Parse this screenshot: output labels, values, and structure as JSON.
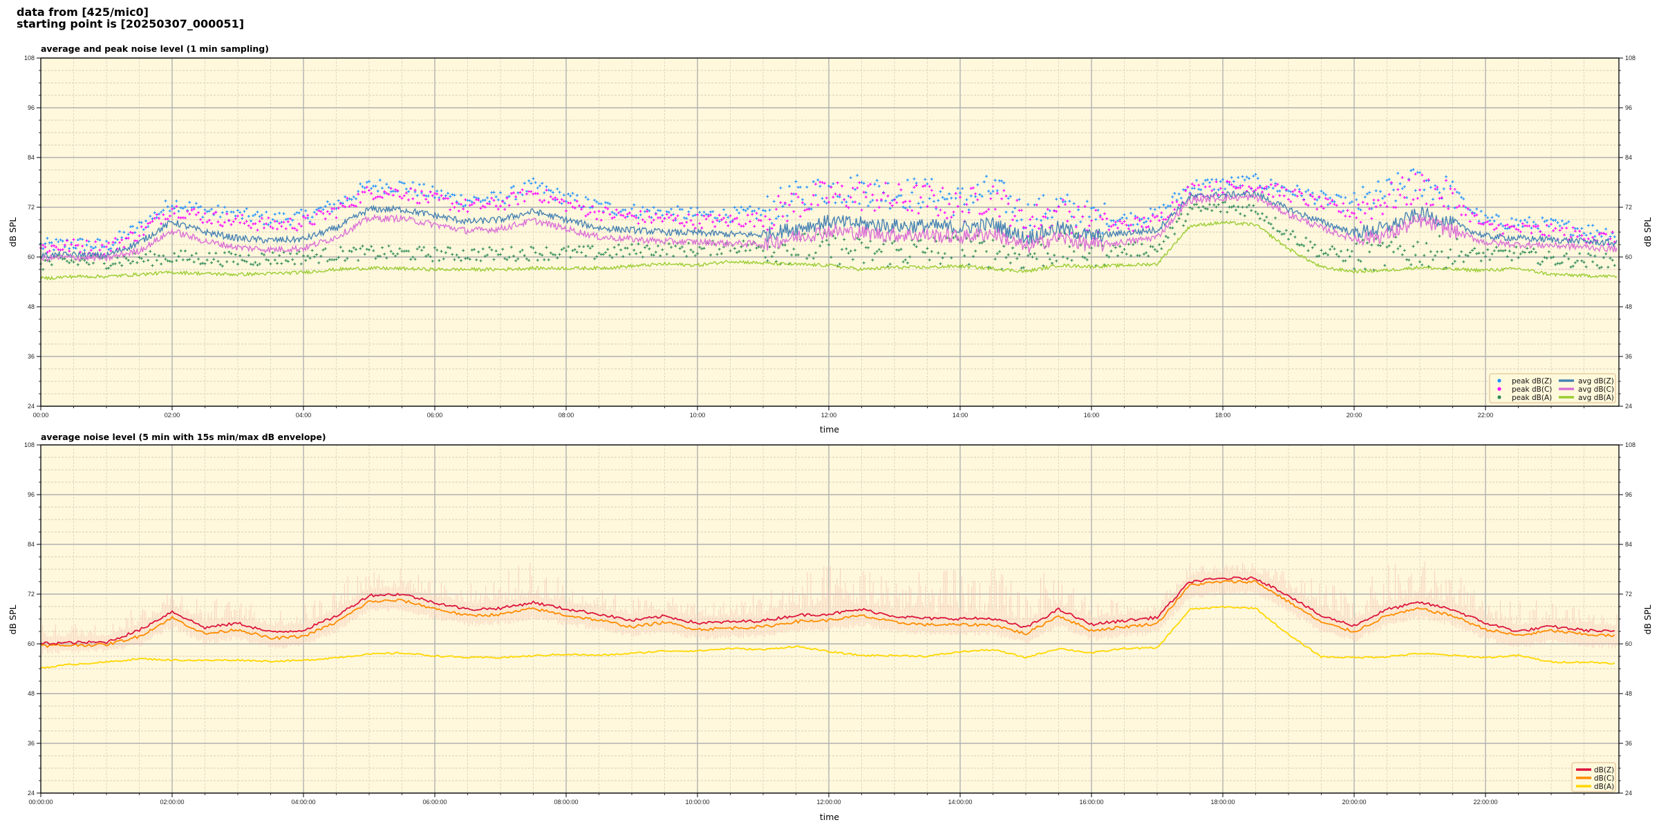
{
  "header": {
    "line1": "data from [425/mic0]",
    "line2": "starting point is [20250307_000051]"
  },
  "chart_data": [
    {
      "type": "line",
      "title": "average and peak noise level (1 min sampling)",
      "xlabel": "time",
      "ylabel": "dB SPL",
      "ylabel_right": "dB SPL",
      "xlim_hours": [
        0,
        24
      ],
      "ylim": [
        24,
        108
      ],
      "yticks": [
        24,
        36,
        48,
        60,
        72,
        84,
        96,
        108
      ],
      "xtick_labels": [
        "00:00",
        "02:00",
        "04:00",
        "06:00",
        "08:00",
        "10:00",
        "12:00",
        "14:00",
        "16:00",
        "18:00",
        "20:00",
        "22:00"
      ],
      "grid": true,
      "background": "#fff8dc",
      "legend_placement": "lower-right",
      "x_hours": [
        0,
        0.5,
        1,
        1.5,
        2,
        2.5,
        3,
        3.5,
        4,
        4.5,
        5,
        5.5,
        6,
        6.5,
        7,
        7.5,
        8,
        8.5,
        9,
        9.5,
        10,
        10.5,
        11,
        11.5,
        12,
        12.5,
        13,
        13.5,
        14,
        14.5,
        15,
        15.5,
        16,
        16.5,
        17,
        17.5,
        18,
        18.5,
        19,
        19.5,
        20,
        20.5,
        21,
        21.5,
        22,
        22.5,
        23,
        23.5,
        24
      ],
      "series": [
        {
          "name": "peak dB(Z)",
          "kind": "scatter",
          "color": "#1e90ff",
          "values": [
            62.5,
            63,
            62.5,
            67,
            73,
            71,
            70,
            69,
            69.5,
            72.5,
            77,
            77,
            75,
            73.5,
            74,
            77,
            74,
            72,
            71,
            70.5,
            70,
            70,
            70.5,
            74,
            76,
            76,
            75,
            75,
            73,
            76,
            69.5,
            72,
            69,
            69,
            70,
            77,
            77.5,
            78,
            76,
            74,
            72,
            75,
            78,
            75,
            68.5,
            68,
            67.5,
            66.5,
            65.5
          ]
        },
        {
          "name": "peak dB(C)",
          "kind": "scatter",
          "color": "#ff00ff",
          "values": [
            62,
            62.5,
            62,
            65.5,
            71.5,
            69.5,
            68.5,
            67.5,
            68,
            71,
            75.5,
            75.5,
            73.5,
            72,
            72.5,
            75.5,
            72.5,
            70.5,
            69.5,
            69,
            68.5,
            68.5,
            69,
            72.5,
            74.5,
            74.5,
            73.5,
            73.5,
            71.5,
            74.5,
            68,
            70.5,
            67.5,
            67.5,
            68.5,
            76,
            76.5,
            77,
            75,
            72.5,
            70.5,
            73.5,
            76.5,
            73.5,
            67,
            66.5,
            66,
            65,
            64
          ]
        },
        {
          "name": "peak dB(A)",
          "kind": "scatter",
          "color": "#2e8b57",
          "values": [
            58.3,
            58.8,
            58.8,
            59.3,
            59.8,
            59.5,
            59.3,
            59.5,
            59.8,
            60.5,
            60.8,
            60.7,
            60.5,
            60.5,
            60.5,
            60.8,
            60.8,
            60.8,
            61.3,
            61.8,
            61.5,
            62.5,
            62,
            61.7,
            61.5,
            60.5,
            61,
            61,
            61.3,
            60.7,
            60,
            61.5,
            61.2,
            61.5,
            61.8,
            71,
            71.8,
            71.3,
            65.5,
            61,
            60,
            60.3,
            61,
            60.5,
            60.3,
            60.7,
            59.3,
            59,
            58.8
          ]
        },
        {
          "name": "avg dB(Z)",
          "kind": "line",
          "color": "#4682b4",
          "values": [
            60.3,
            60.5,
            60.3,
            63.5,
            68.5,
            66,
            64.5,
            64,
            64.3,
            67,
            71.5,
            71.5,
            70,
            68.5,
            69,
            71,
            69,
            67,
            66.5,
            66,
            65.8,
            65.5,
            65.3,
            67,
            68.5,
            68,
            67.5,
            67.5,
            67,
            68,
            64.5,
            67,
            65,
            65.8,
            66.5,
            74.5,
            75,
            75.2,
            71.5,
            68.5,
            65.8,
            67,
            70.5,
            68,
            65,
            64.5,
            64.2,
            63.8,
            63.3
          ]
        },
        {
          "name": "avg dB(C)",
          "kind": "line",
          "color": "#da70d6",
          "values": [
            59.7,
            59.9,
            59.7,
            61.5,
            66.3,
            63.8,
            62.3,
            61.8,
            62.1,
            64.8,
            69.3,
            69.3,
            67.8,
            66.3,
            66.8,
            68.8,
            66.8,
            64.8,
            64.3,
            63.8,
            63.6,
            63.3,
            63.1,
            64.8,
            66.3,
            65.8,
            65.3,
            65.3,
            64.8,
            65.8,
            62.3,
            64.8,
            62.8,
            63.6,
            64.8,
            73.7,
            74.2,
            74.4,
            70.3,
            67,
            64.3,
            65.3,
            68.8,
            66.3,
            63.5,
            63,
            62.8,
            62.4,
            61.9
          ]
        },
        {
          "name": "avg dB(A)",
          "kind": "line",
          "color": "#9acd32",
          "values": [
            54.8,
            55.3,
            55.3,
            55.8,
            56.3,
            56,
            55.8,
            56,
            56.3,
            57,
            57.3,
            57.2,
            57,
            57,
            57,
            57.3,
            57.3,
            57.3,
            57.8,
            58.3,
            58,
            59,
            58.5,
            58.2,
            58,
            57,
            57.5,
            57.5,
            57.8,
            57.2,
            56.5,
            58,
            57.7,
            58,
            58.3,
            67.5,
            68.3,
            67.8,
            62,
            57.5,
            56.5,
            56.8,
            57.5,
            57,
            56.8,
            57.2,
            55.8,
            55.5,
            55.3
          ]
        }
      ]
    },
    {
      "type": "line",
      "title": "average noise level (5 min with 15s min/max dB envelope)",
      "xlabel": "time",
      "ylabel": "dB SPL",
      "ylabel_right": "dB SPL",
      "xlim_hours": [
        0,
        24
      ],
      "ylim": [
        24,
        108
      ],
      "yticks": [
        24,
        36,
        48,
        60,
        72,
        84,
        96,
        108
      ],
      "xtick_labels": [
        "00:00:00",
        "02:00:00",
        "04:00:00",
        "06:00:00",
        "08:00:00",
        "10:00:00",
        "12:00:00",
        "14:00:00",
        "16:00:00",
        "18:00:00",
        "20:00:00",
        "22:00:00"
      ],
      "grid": true,
      "background": "#fff8dc",
      "legend_placement": "lower-right",
      "envelope_color": "#f4b8a8",
      "x_hours": [
        0,
        0.5,
        1,
        1.5,
        2,
        2.5,
        3,
        3.5,
        4,
        4.5,
        5,
        5.5,
        6,
        6.5,
        7,
        7.5,
        8,
        8.5,
        9,
        9.5,
        10,
        10.5,
        11,
        11.5,
        12,
        12.5,
        13,
        13.5,
        14,
        14.5,
        15,
        15.5,
        16,
        16.5,
        17,
        17.5,
        18,
        18.5,
        19,
        19.5,
        20,
        20.5,
        21,
        21.5,
        22,
        22.5,
        23,
        23.5,
        24
      ],
      "envelope_max": [
        63,
        64,
        63,
        68,
        73,
        70,
        69,
        67,
        68,
        74,
        78,
        77,
        74,
        73,
        76,
        79,
        74,
        72,
        70,
        70,
        69,
        69,
        72,
        76,
        78,
        78,
        79,
        75,
        78,
        77,
        74,
        77,
        70,
        69,
        69,
        78,
        78,
        78,
        76,
        74,
        71,
        78,
        79,
        78,
        68,
        70,
        69,
        67,
        66
      ],
      "envelope_min": [
        58.6,
        58.8,
        58.9,
        60.3,
        64.8,
        60.9,
        62,
        59.8,
        60.3,
        63.7,
        68.7,
        69,
        67,
        65.3,
        65.6,
        67,
        65.4,
        64.2,
        62.6,
        63.7,
        62,
        62.3,
        62.6,
        63.9,
        64.2,
        65.3,
        63.7,
        63.1,
        63.1,
        63.1,
        60.9,
        65.3,
        61.7,
        62.6,
        63.4,
        72,
        72.8,
        72.8,
        68.7,
        63.7,
        61.4,
        65.3,
        67,
        65.3,
        62,
        60,
        61.2,
        60.3,
        59.9
      ],
      "series": [
        {
          "name": "dB(Z)",
          "color": "#dc143c",
          "values": [
            60.1,
            60.3,
            60.4,
            63.3,
            67.8,
            63.9,
            65,
            62.8,
            63.3,
            66.7,
            71.7,
            72,
            70,
            68.3,
            68.6,
            70,
            68.4,
            67.2,
            65.6,
            66.7,
            65,
            65.3,
            65.6,
            66.9,
            67.2,
            68.3,
            66.7,
            66.1,
            66.1,
            66.1,
            63.9,
            68.3,
            64.7,
            65.6,
            66.4,
            75,
            75.8,
            75.8,
            71.7,
            66.7,
            64.4,
            68.3,
            70,
            68.3,
            65,
            63,
            64.2,
            63.3,
            62.9
          ]
        },
        {
          "name": "dB(C)",
          "color": "#ff8c00",
          "values": [
            59.5,
            59.7,
            59.8,
            61.8,
            66.3,
            62.4,
            63.5,
            61.3,
            61.8,
            65.2,
            70.2,
            70.5,
            68.5,
            66.8,
            67.1,
            68.5,
            66.9,
            65.7,
            64.1,
            65.2,
            63.5,
            63.8,
            64.1,
            65.4,
            65.7,
            66.8,
            65.2,
            64.6,
            64.6,
            64.6,
            62.4,
            66.8,
            63.2,
            64.1,
            64.9,
            74.2,
            75,
            75,
            70.2,
            65.2,
            62.9,
            66.8,
            68.5,
            66.8,
            63.5,
            62,
            63.2,
            62.3,
            61.9
          ]
        },
        {
          "name": "dB(A)",
          "color": "#ffd700",
          "values": [
            54.2,
            55.1,
            55.6,
            56.4,
            56.1,
            56,
            56.1,
            55.8,
            56,
            56.7,
            57.5,
            57.8,
            57.1,
            56.7,
            56.7,
            57.1,
            57.5,
            57.2,
            57.7,
            58.3,
            58.3,
            58.9,
            58.6,
            59.4,
            58.1,
            57.2,
            57.2,
            57,
            58.1,
            58.6,
            56.7,
            58.9,
            57.8,
            58.9,
            59,
            68.3,
            68.9,
            68.6,
            62.2,
            56.9,
            56.7,
            56.9,
            57.7,
            57.2,
            56.7,
            57.2,
            55.6,
            55.6,
            55.3
          ]
        }
      ]
    }
  ]
}
